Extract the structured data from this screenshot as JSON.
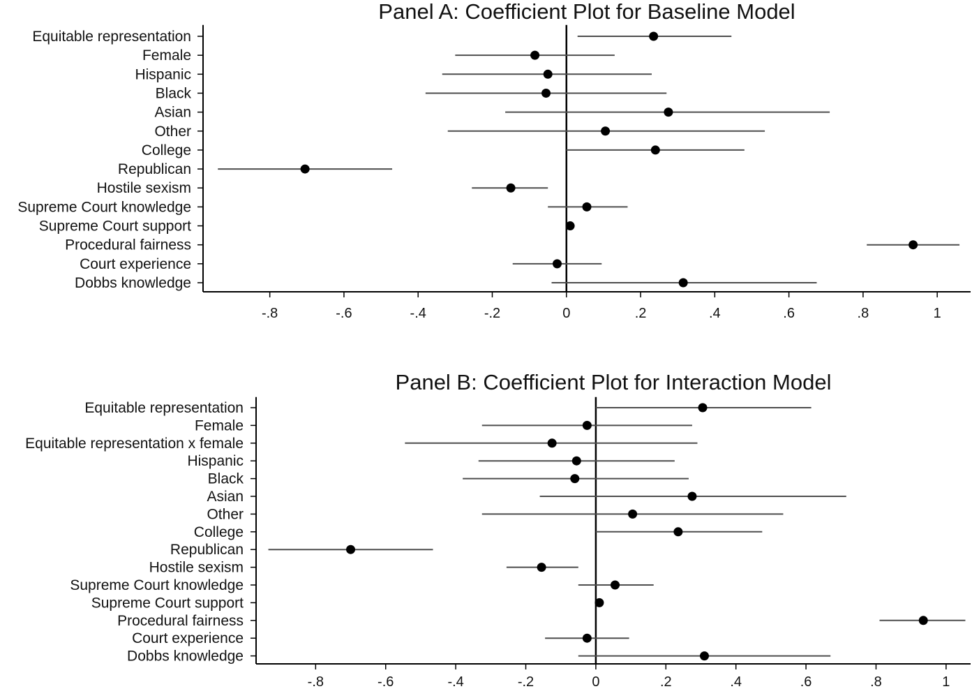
{
  "chart_data": [
    {
      "type": "scatter",
      "title": "Panel A: Coefficient Plot for Baseline Model",
      "xlabel": "",
      "ylabel": "",
      "xlim": [
        -0.98,
        1.09
      ],
      "xticks": [
        -0.8,
        -0.6,
        -0.4,
        -0.2,
        0,
        0.2,
        0.4,
        0.6,
        0.8,
        1
      ],
      "xtick_labels": [
        "-.8",
        "-.6",
        "-.4",
        "-.2",
        "0",
        ".2",
        ".4",
        ".6",
        ".8",
        "1"
      ],
      "reference_line": 0,
      "grid": false,
      "categories": [
        "Equitable representation",
        "Female",
        "Hispanic",
        "Black",
        "Asian",
        "Other",
        "College",
        "Republican",
        "Hostile sexism",
        "Supreme Court knowledge",
        "Supreme Court support",
        "Procedural fairness",
        "Court experience",
        "Dobbs knowledge"
      ],
      "estimate": [
        0.235,
        -0.085,
        -0.05,
        -0.055,
        0.275,
        0.105,
        0.24,
        -0.705,
        -0.15,
        0.055,
        0.01,
        0.935,
        -0.025,
        0.315
      ],
      "ci_low": [
        0.03,
        -0.3,
        -0.335,
        -0.38,
        -0.165,
        -0.32,
        0.0,
        -0.94,
        -0.255,
        -0.05,
        0.0,
        0.81,
        -0.145,
        -0.04
      ],
      "ci_high": [
        0.445,
        0.13,
        0.23,
        0.27,
        0.71,
        0.535,
        0.48,
        -0.47,
        -0.05,
        0.165,
        0.02,
        1.06,
        0.095,
        0.675
      ]
    },
    {
      "type": "scatter",
      "title": "Panel B: Coefficient Plot for Interaction Model",
      "xlabel": "",
      "ylabel": "",
      "xlim": [
        -0.97,
        1.07
      ],
      "xticks": [
        -0.8,
        -0.6,
        -0.4,
        -0.2,
        0,
        0.2,
        0.4,
        0.6,
        0.8,
        1
      ],
      "xtick_labels": [
        "-.8",
        "-.6",
        "-.4",
        "-.2",
        "0",
        ".2",
        ".4",
        ".6",
        ".8",
        "1"
      ],
      "reference_line": 0,
      "grid": false,
      "categories": [
        "Equitable representation",
        "Female",
        "Equitable representation x female",
        "Hispanic",
        "Black",
        "Asian",
        "Other",
        "College",
        "Republican",
        "Hostile sexism",
        "Supreme Court knowledge",
        "Supreme Court support",
        "Procedural fairness",
        "Court experience",
        "Dobbs knowledge"
      ],
      "estimate": [
        0.305,
        -0.025,
        -0.125,
        -0.055,
        -0.06,
        0.275,
        0.105,
        0.235,
        -0.7,
        -0.155,
        0.055,
        0.01,
        0.935,
        -0.025,
        0.31
      ],
      "ci_low": [
        0.0,
        -0.325,
        -0.545,
        -0.335,
        -0.38,
        -0.16,
        -0.325,
        0.0,
        -0.935,
        -0.255,
        -0.05,
        0.0,
        0.81,
        -0.145,
        -0.05
      ],
      "ci_high": [
        0.615,
        0.275,
        0.29,
        0.225,
        0.265,
        0.715,
        0.535,
        0.475,
        -0.465,
        -0.05,
        0.165,
        0.02,
        1.055,
        0.095,
        0.67
      ]
    }
  ]
}
